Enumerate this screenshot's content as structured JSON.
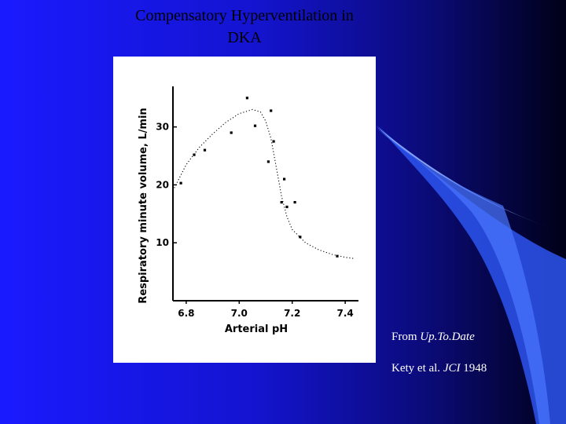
{
  "slide": {
    "title_line1": "Compensatory Hyperventilation in",
    "title_line2": "DKA",
    "caption_source_prefix": "From ",
    "caption_source_name": "Up.To.Date",
    "caption_ref_prefix": "Kety et al. ",
    "caption_ref_journal": "JCI",
    "caption_ref_year": " 1948",
    "colors": {
      "background_left": "#1a1aff",
      "background_right": "#000018",
      "swoosh": "#3b6cff",
      "text": "#ffffff"
    }
  },
  "chart_data": {
    "type": "scatter",
    "xlabel": "Arterial pH",
    "ylabel": "Respiratory minute volume, L/min",
    "xlim": [
      6.75,
      7.45
    ],
    "ylim": [
      0,
      37
    ],
    "x_ticks": [
      6.8,
      7.0,
      7.2,
      7.4
    ],
    "x_tick_labels": [
      "6.8",
      "7.0",
      "7.2",
      "7.4"
    ],
    "y_ticks": [
      10,
      20,
      30
    ],
    "y_tick_labels": [
      "10",
      "20",
      "30"
    ],
    "points": [
      {
        "x": 6.78,
        "y": 20.3
      },
      {
        "x": 6.83,
        "y": 25.2
      },
      {
        "x": 6.87,
        "y": 26.0
      },
      {
        "x": 6.97,
        "y": 29.0
      },
      {
        "x": 7.03,
        "y": 35.0
      },
      {
        "x": 7.06,
        "y": 30.2
      },
      {
        "x": 7.12,
        "y": 32.8
      },
      {
        "x": 7.13,
        "y": 27.5
      },
      {
        "x": 7.11,
        "y": 24.0
      },
      {
        "x": 7.17,
        "y": 21.0
      },
      {
        "x": 7.16,
        "y": 17.0
      },
      {
        "x": 7.18,
        "y": 16.2
      },
      {
        "x": 7.21,
        "y": 17.0
      },
      {
        "x": 7.23,
        "y": 11.0
      },
      {
        "x": 7.37,
        "y": 7.7
      }
    ],
    "curve": [
      {
        "x": 6.75,
        "y": 19.0
      },
      {
        "x": 6.8,
        "y": 23.5
      },
      {
        "x": 6.85,
        "y": 26.5
      },
      {
        "x": 6.9,
        "y": 28.8
      },
      {
        "x": 6.95,
        "y": 30.8
      },
      {
        "x": 7.0,
        "y": 32.3
      },
      {
        "x": 7.05,
        "y": 33.0
      },
      {
        "x": 7.08,
        "y": 32.6
      },
      {
        "x": 7.1,
        "y": 31.0
      },
      {
        "x": 7.12,
        "y": 28.0
      },
      {
        "x": 7.14,
        "y": 23.0
      },
      {
        "x": 7.16,
        "y": 18.0
      },
      {
        "x": 7.18,
        "y": 14.5
      },
      {
        "x": 7.2,
        "y": 12.3
      },
      {
        "x": 7.25,
        "y": 10.0
      },
      {
        "x": 7.3,
        "y": 8.8
      },
      {
        "x": 7.35,
        "y": 8.0
      },
      {
        "x": 7.4,
        "y": 7.5
      },
      {
        "x": 7.43,
        "y": 7.3
      }
    ]
  }
}
